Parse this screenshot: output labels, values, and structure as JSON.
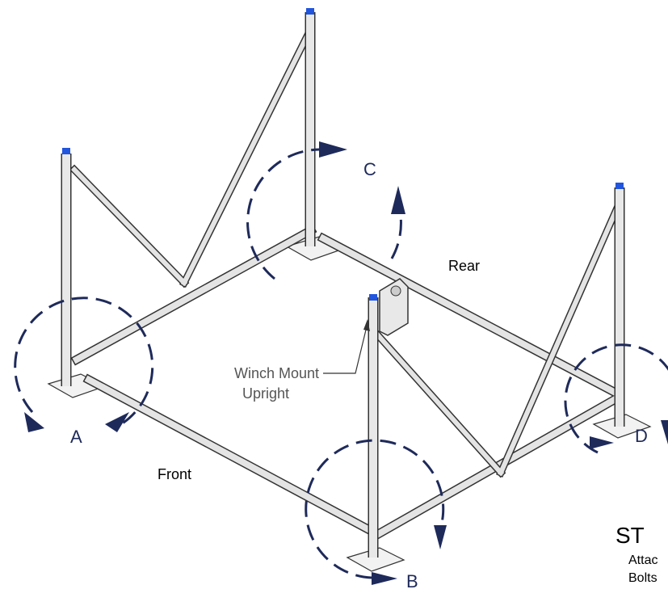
{
  "labels": {
    "c": "C",
    "rear": "Rear",
    "winch_line1": "Winch Mount",
    "winch_line2": "Upright",
    "a": "A",
    "front": "Front",
    "d": "D",
    "b": "B"
  },
  "step": {
    "title": "ST",
    "line1": "Attac",
    "line2": "Bolts"
  }
}
